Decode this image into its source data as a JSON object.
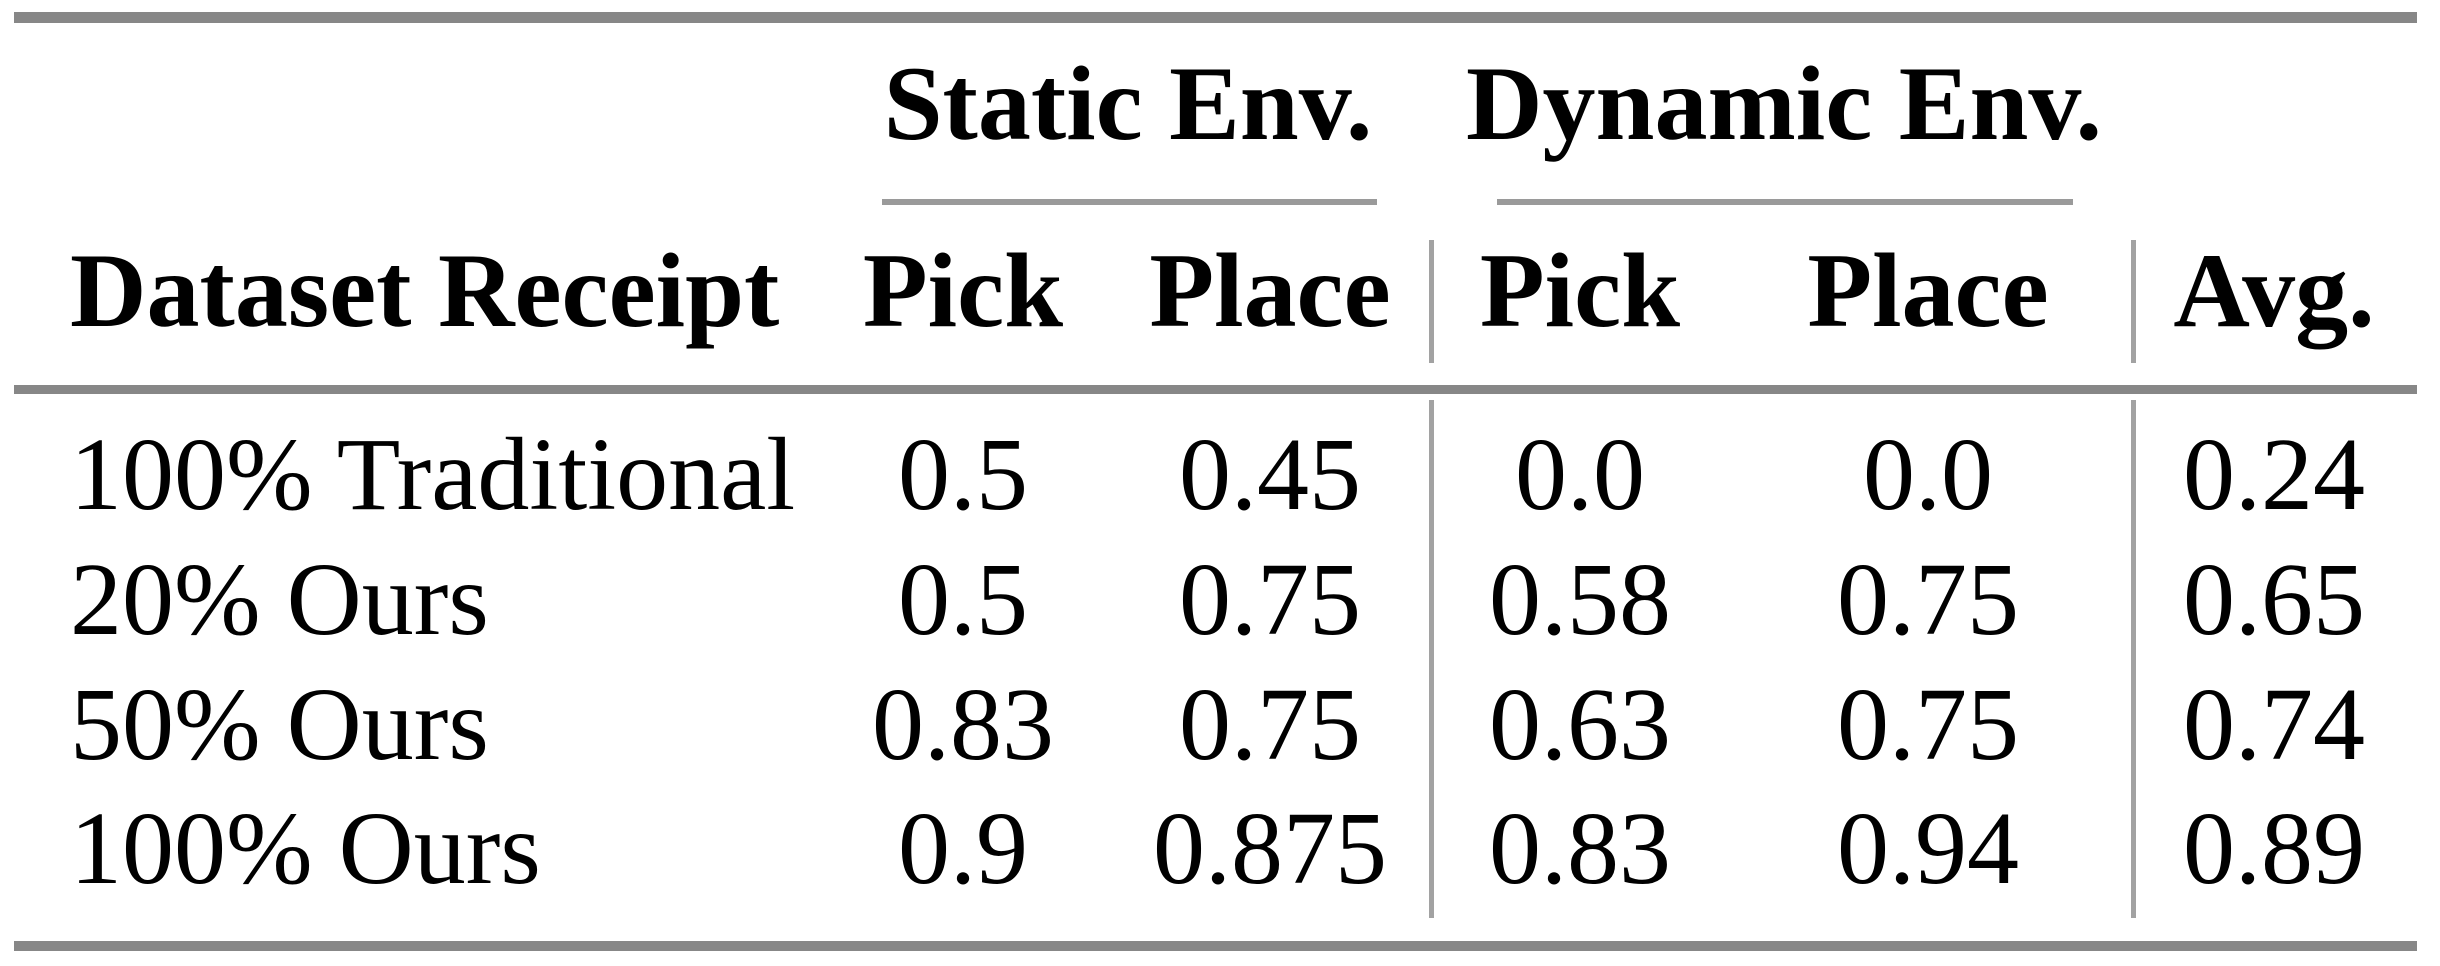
{
  "table": {
    "col_groups": [
      {
        "label": "Static Env."
      },
      {
        "label": "Dynamic Env."
      }
    ],
    "columns": {
      "dataset": "Dataset Receipt",
      "static_pick": "Pick",
      "static_place": "Place",
      "dynamic_pick": "Pick",
      "dynamic_place": "Place",
      "avg": "Avg."
    },
    "rows": [
      {
        "label": "100% Traditional",
        "static_pick": "0.5",
        "static_place": "0.45",
        "dynamic_pick": "0.0",
        "dynamic_place": "0.0",
        "avg": "0.24"
      },
      {
        "label": "20% Ours",
        "static_pick": "0.5",
        "static_place": "0.75",
        "dynamic_pick": "0.58",
        "dynamic_place": "0.75",
        "avg": "0.65"
      },
      {
        "label": "50% Ours",
        "static_pick": "0.83",
        "static_place": "0.75",
        "dynamic_pick": "0.63",
        "dynamic_place": "0.75",
        "avg": "0.74"
      },
      {
        "label": "100% Ours",
        "static_pick": "0.9",
        "static_place": "0.875",
        "dynamic_pick": "0.83",
        "dynamic_place": "0.94",
        "avg": "0.89"
      }
    ],
    "colors": {
      "rule": "#878787",
      "thin_rule": "#9a9a9a",
      "vline": "#a2a2a2",
      "text": "#000000",
      "background": "#ffffff"
    }
  }
}
